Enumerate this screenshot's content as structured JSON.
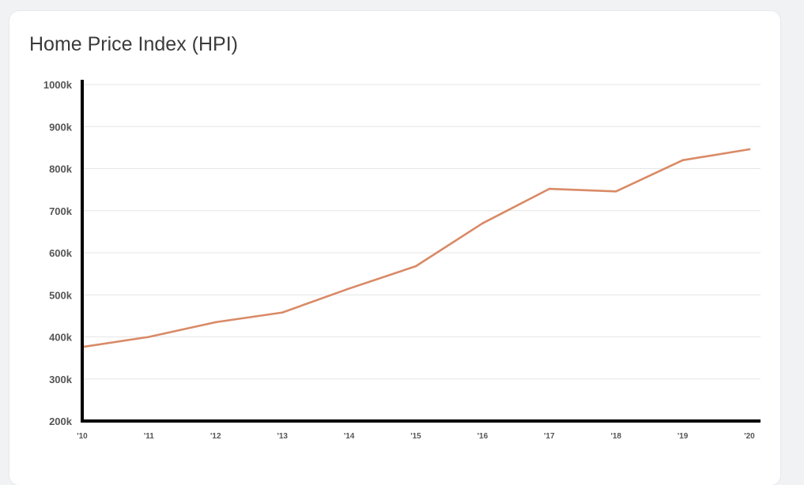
{
  "card": {
    "title": "Home Price Index (HPI)"
  },
  "chart_data": {
    "type": "line",
    "title": "Home Price Index (HPI)",
    "xlabel": "",
    "ylabel": "",
    "categories": [
      "'10",
      "'11",
      "'12",
      "'13",
      "'14",
      "'15",
      "'16",
      "'17",
      "'18",
      "'19",
      "'20"
    ],
    "series": [
      {
        "values": [
          376000,
          400000,
          435000,
          458000,
          515000,
          568000,
          670000,
          752000,
          746000,
          820000,
          846000
        ],
        "color": "#d98a66"
      }
    ],
    "ylim": [
      200000,
      1000000
    ],
    "yticks": [
      {
        "value": 1000000,
        "label": "1000k"
      },
      {
        "value": 900000,
        "label": "900k"
      },
      {
        "value": 800000,
        "label": "800k"
      },
      {
        "value": 700000,
        "label": "700k"
      },
      {
        "value": 600000,
        "label": "600k"
      },
      {
        "value": 500000,
        "label": "500k"
      },
      {
        "value": 400000,
        "label": "400k"
      },
      {
        "value": 300000,
        "label": "300k"
      },
      {
        "value": 200000,
        "label": "200k"
      }
    ],
    "grid": true,
    "legend": "none"
  },
  "colors": {
    "line": "#d98a66",
    "axis": "#000000",
    "grid": "#e6e6e6",
    "card": "#ffffff",
    "background": "#f1f2f4"
  }
}
